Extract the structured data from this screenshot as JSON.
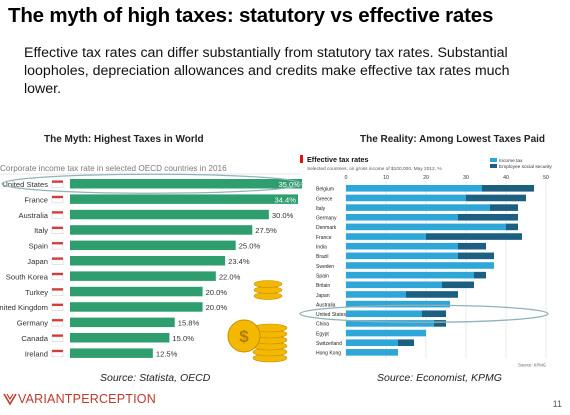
{
  "slide": {
    "title": "The myth of high taxes: statutory vs effective rates",
    "subtitle": "Effective tax rates can differ substantially from statutory tax rates.  Substantial loopholes, depreciation allowances and credits make effective tax rates much lower.",
    "page_number": "11",
    "logo_text_a": "VARIANT",
    "logo_text_b": "PERCEPTION",
    "left_heading": "The Myth: Highest Taxes in World",
    "right_heading": "The Reality: Among Lowest Taxes Paid",
    "left_source": "Source: Statista, OECD",
    "right_source": "Source: Economist, KPMG"
  },
  "colors": {
    "left_bar": "#2e9e6e",
    "income_tax": "#2ea6d8",
    "social_security": "#1c5f80",
    "highlight_ring": "#8fb3b8",
    "logo": "#c0392b",
    "coin": "#f5b800"
  },
  "chart_data": [
    {
      "type": "bar",
      "orientation": "horizontal",
      "title": "Corporate income tax rate in selected OECD countries in 2016",
      "categories": [
        "United States",
        "France",
        "Australia",
        "Italy",
        "Spain",
        "Japan",
        "South Korea",
        "Turkey",
        "United Kingdom",
        "Germany",
        "Canada",
        "Ireland"
      ],
      "values": [
        35.0,
        34.4,
        30.0,
        27.5,
        25.0,
        23.4,
        22.0,
        20.0,
        20.0,
        15.8,
        15.0,
        12.5
      ],
      "data_labels": [
        "35.0%",
        "34.4%",
        "30.0%",
        "27.5%",
        "25.0%",
        "23.4%",
        "22.0%",
        "20.0%",
        "20.0%",
        "15.8%",
        "15.0%",
        "12.5%"
      ],
      "highlight": "United States",
      "xlim": [
        0,
        35
      ]
    },
    {
      "type": "bar",
      "orientation": "horizontal",
      "stacked": true,
      "title": "Effective tax rates",
      "subtitle": "Selected countries, on gross income of $100,000, May 2012, %",
      "categories": [
        "Belgium",
        "Greece",
        "Italy",
        "Germany",
        "Denmark",
        "France",
        "India",
        "Brazil",
        "Sweden",
        "Spain",
        "Britain",
        "Japan",
        "Australia",
        "United States",
        "China",
        "Egypt",
        "Switzerland",
        "Hong Kong"
      ],
      "series": [
        {
          "name": "Income tax",
          "values": [
            34,
            30,
            36,
            28,
            40,
            20,
            28,
            28,
            37,
            32,
            24,
            15,
            26,
            19,
            22,
            20,
            13,
            13
          ]
        },
        {
          "name": "Employee social security",
          "values": [
            13,
            15,
            7,
            15,
            3,
            24,
            7,
            9,
            0,
            3,
            8,
            13,
            0,
            6,
            3,
            0,
            4,
            0
          ]
        }
      ],
      "x_ticks": [
        0,
        10,
        20,
        30,
        40,
        50
      ],
      "xlim": [
        0,
        50
      ],
      "legend": "top-right",
      "highlight": "United States",
      "footnote": "Source: KPMG"
    }
  ]
}
